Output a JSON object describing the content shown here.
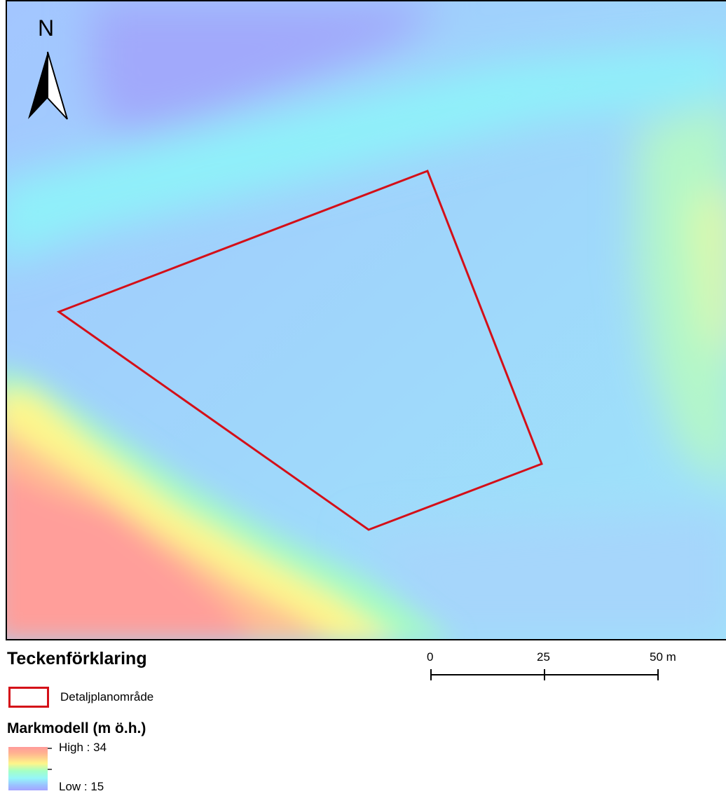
{
  "map": {
    "north_arrow_label": "N",
    "plan_area_color": "#d40f18",
    "elevation_colors": {
      "high": "#ff9b9b",
      "mid_high": "#fef58a",
      "mid": "#95f6f8",
      "low": "#a4a4ff"
    }
  },
  "legend": {
    "title": "Teckenförklaring",
    "plan_area_label": "Detaljplanområde",
    "dem_title": "Markmodell (m ö.h.)",
    "high_label": "High : 34",
    "low_label": "Low : 15"
  },
  "scale": {
    "labels": [
      "0",
      "25",
      "50 m"
    ]
  }
}
